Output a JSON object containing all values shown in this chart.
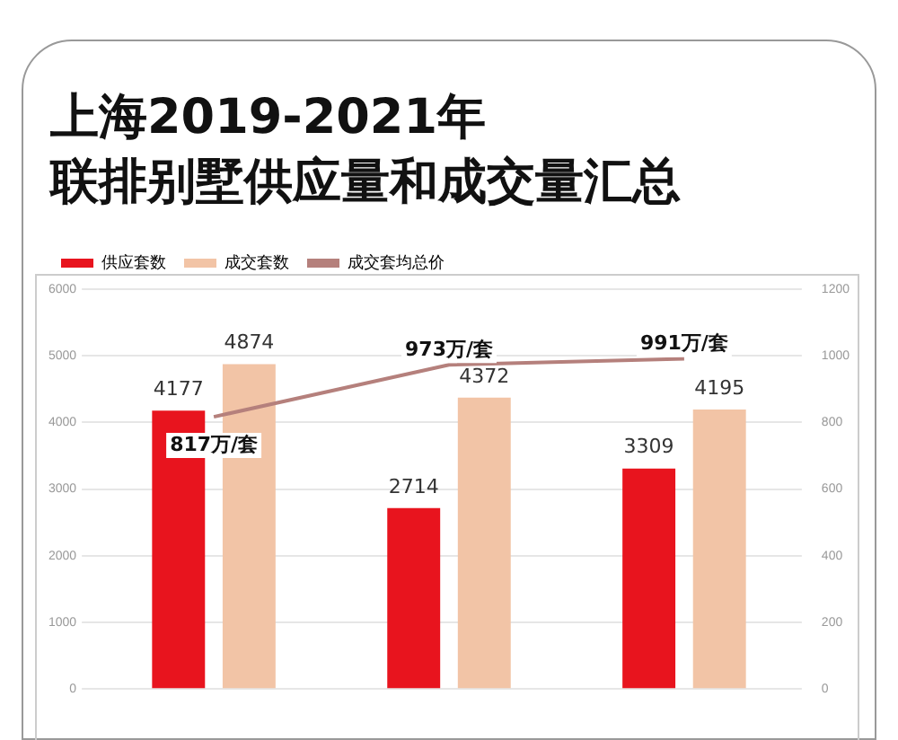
{
  "chart_data": {
    "type": "bar",
    "title": "上海2019-2021年",
    "subtitle": "联排别墅供应量和成交量汇总",
    "categories": [
      null,
      null,
      null
    ],
    "series": [
      {
        "name": "供应套数",
        "color": "#e8141e",
        "values": [
          4177,
          2714,
          3309
        ]
      },
      {
        "name": "成交套数",
        "color": "#f2c4a6",
        "values": [
          4874,
          4372,
          4195
        ]
      },
      {
        "name": "成交套均总价",
        "type": "line",
        "axis": "y2",
        "color": "#b5807c",
        "values": [
          817,
          973,
          991
        ],
        "value_labels": [
          "817万/套",
          "973万/套",
          "991万/套"
        ]
      }
    ],
    "ylim": [
      0,
      6000
    ],
    "yticks": [
      0,
      1000,
      2000,
      3000,
      4000,
      5000,
      6000
    ],
    "y2lim": [
      0,
      1200
    ],
    "y2ticks": [
      0,
      200,
      400,
      600,
      800,
      1000,
      1200
    ],
    "grid": "y",
    "legend": "top left",
    "data_labels": true,
    "marker": "none"
  }
}
